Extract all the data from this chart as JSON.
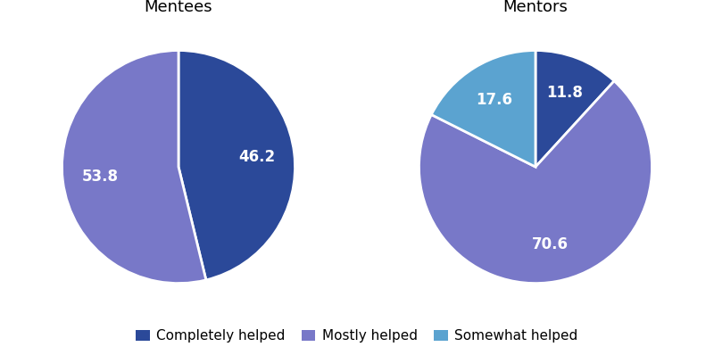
{
  "mentees_labels": [
    "Completely helped",
    "Mostly helped"
  ],
  "mentees_values": [
    46.2,
    53.8
  ],
  "mentees_colors": [
    "#2b4999",
    "#7878c8"
  ],
  "mentees_title": "Mentees",
  "mentors_title": "Mentors",
  "mentors_values_ordered": [
    11.8,
    17.6,
    70.6
  ],
  "mentors_colors_ordered": [
    "#2b4999",
    "#5ba3d0",
    "#7878c8"
  ],
  "mentors_labels_ordered": [
    "Completely helped",
    "Somewhat helped",
    "Mostly helped"
  ],
  "legend_labels": [
    "Completely helped",
    "Mostly helped",
    "Somewhat helped"
  ],
  "legend_colors": [
    "#2b4999",
    "#7878c8",
    "#5ba3d0"
  ],
  "text_color": "#ffffff",
  "label_fontsize": 12,
  "title_fontsize": 13,
  "legend_fontsize": 11,
  "background_color": "#ffffff"
}
